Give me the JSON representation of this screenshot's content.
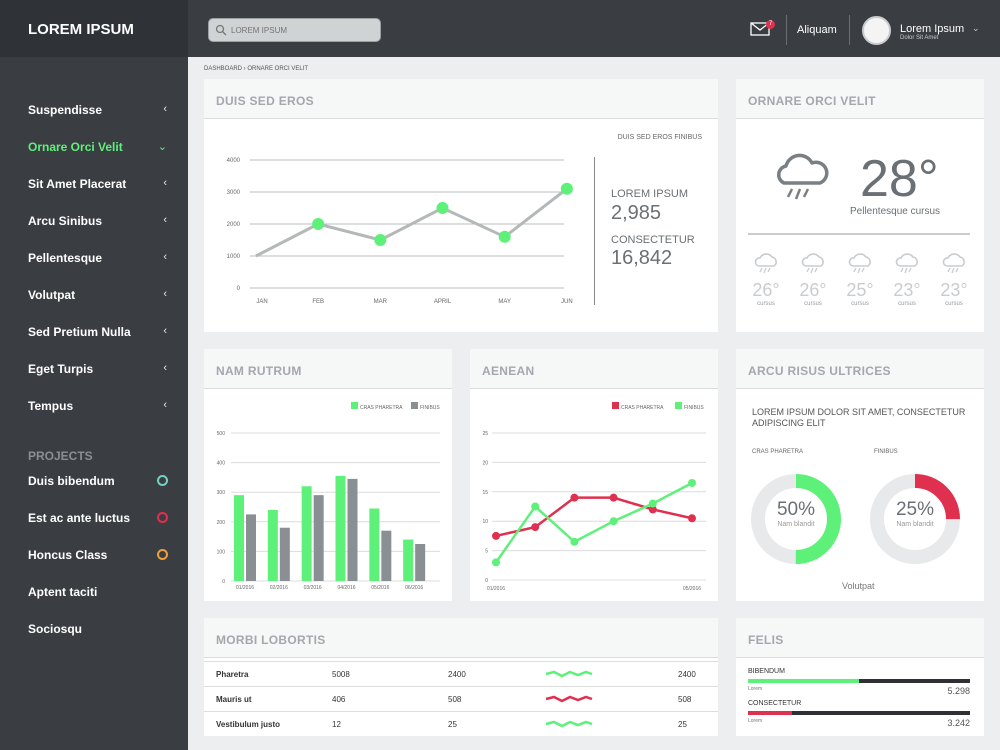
{
  "app": {
    "brand": "LOREM IPSUM"
  },
  "topbar": {
    "search_placeholder": "LOREM IPSUM",
    "mail_count": "7",
    "link": "Aliquam",
    "user_name": "Lorem Ipsum",
    "user_sub": "Dolor Sit Amet"
  },
  "sidebar": {
    "items": [
      {
        "label": "Suspendisse"
      },
      {
        "label": "Ornare Orci Velit",
        "active": true
      },
      {
        "label": "Sit Amet Placerat"
      },
      {
        "label": "Arcu Sinibus"
      },
      {
        "label": "Pellentesque"
      },
      {
        "label": "Volutpat"
      },
      {
        "label": "Sed Pretium Nulla"
      },
      {
        "label": "Eget Turpis"
      },
      {
        "label": "Tempus"
      }
    ],
    "projects_title": "PROJECTS",
    "projects": [
      {
        "label": "Duis bibendum",
        "color": "#6fd3c3"
      },
      {
        "label": "Est ac ante luctus",
        "color": "#e0304f"
      },
      {
        "label": "Honcus Class",
        "color": "#f0a030"
      },
      {
        "label": "Aptent taciti"
      },
      {
        "label": "Sociosqu"
      }
    ]
  },
  "breadcrumb": "DASHBOARD  ›  ORNARE ORCI VELIT",
  "card1": {
    "title": "DUIS SED EROS",
    "subtitle": "DUIS SED EROS FINIBUS",
    "stat1_label": "LOREM IPSUM",
    "stat1_value": "2,985",
    "stat2_label": "CONSECTETUR",
    "stat2_value": "16,842"
  },
  "weather": {
    "title": "ORNARE ORCI VELIT",
    "temp": "28°",
    "caption": "Pellentesque cursus",
    "forecast": [
      {
        "t": "26°",
        "c": "cursus"
      },
      {
        "t": "26°",
        "c": "cursus"
      },
      {
        "t": "25°",
        "c": "cursus"
      },
      {
        "t": "23°",
        "c": "cursus"
      },
      {
        "t": "23°",
        "c": "cursus"
      }
    ]
  },
  "card_bar": {
    "title": "NAM RUTRUM"
  },
  "card_line": {
    "title": "AENEAN"
  },
  "donuts": {
    "title": "ARCU RISUS ULTRICES",
    "desc": "LOREM IPSUM DOLOR SIT AMET, CONSECTETUR ADIPISCING ELIT",
    "d1_label": "CRAS PHARETRA",
    "d1_value": "50%",
    "d1_fraction": 0.5,
    "d1_sub": "Nam blandit",
    "d2_label": "FINIBUS",
    "d2_value": "25%",
    "d2_fraction": 0.25,
    "d2_sub": "Nam blandit",
    "footer": "Volutpat"
  },
  "table": {
    "title": "MORBI LOBORTIS",
    "rows": [
      {
        "name": "Pharetra",
        "a": "5008",
        "b": "2400",
        "c": "2400",
        "color": "#5ef17a"
      },
      {
        "name": "Mauris ut",
        "a": "406",
        "b": "508",
        "c": "508",
        "color": "#e0304f"
      },
      {
        "name": "Vestibulum justo",
        "a": "12",
        "b": "25",
        "c": "25",
        "color": "#5ef17a"
      }
    ]
  },
  "felis": {
    "title": "FELIS",
    "bars": [
      {
        "label": "BIBENDUM",
        "sub": "Lorem",
        "value": "5.298",
        "fraction": 0.5,
        "color": "#5ef17a"
      },
      {
        "label": "CONSECTETUR",
        "sub": "Lorem",
        "value": "3.242",
        "fraction": 0.2,
        "color": "#e0304f"
      }
    ]
  },
  "colors": {
    "green": "#5ef17a",
    "red": "#e0304f",
    "gray": "#8a8f94"
  },
  "chart_data": [
    {
      "type": "line",
      "categories": [
        "JAN",
        "FEB",
        "MAR",
        "APRIL",
        "MAY",
        "JUN"
      ],
      "values": [
        1000,
        2000,
        1500,
        2500,
        1600,
        3100
      ],
      "ylim": [
        0,
        4000
      ],
      "yticks": [
        "4000",
        "3000",
        "2000",
        "1000",
        "0"
      ],
      "grid": true
    },
    {
      "type": "bar",
      "categories": [
        "01/2016",
        "02/2016",
        "03/2016",
        "04/2016",
        "05/2016",
        "06/2016"
      ],
      "series": [
        {
          "name": "CRAS PHARETRA",
          "color": "#5ef17a",
          "values": [
            290,
            240,
            320,
            355,
            245,
            140
          ]
        },
        {
          "name": "FINIBUS",
          "color": "#8a8f94",
          "values": [
            225,
            180,
            290,
            345,
            170,
            125
          ]
        }
      ],
      "ylim": [
        0,
        500
      ],
      "yticks": [
        "500",
        "400",
        "300",
        "200",
        "100",
        "0"
      ],
      "legend": "top-right"
    },
    {
      "type": "line",
      "x": [
        "01/2016",
        "",
        "",
        "",
        "",
        "05/2016"
      ],
      "series": [
        {
          "name": "CRAS PHARETRA",
          "color": "#e0304f",
          "values": [
            7.5,
            9,
            14,
            14,
            12,
            10.5
          ]
        },
        {
          "name": "FINIBUS",
          "color": "#5ef17a",
          "values": [
            3,
            12.5,
            6.5,
            10,
            13,
            16.5
          ]
        }
      ],
      "ylim": [
        0,
        25
      ],
      "yticks": [
        "25",
        "20",
        "15",
        "10",
        "5",
        "0"
      ],
      "legend": "top-right"
    }
  ]
}
